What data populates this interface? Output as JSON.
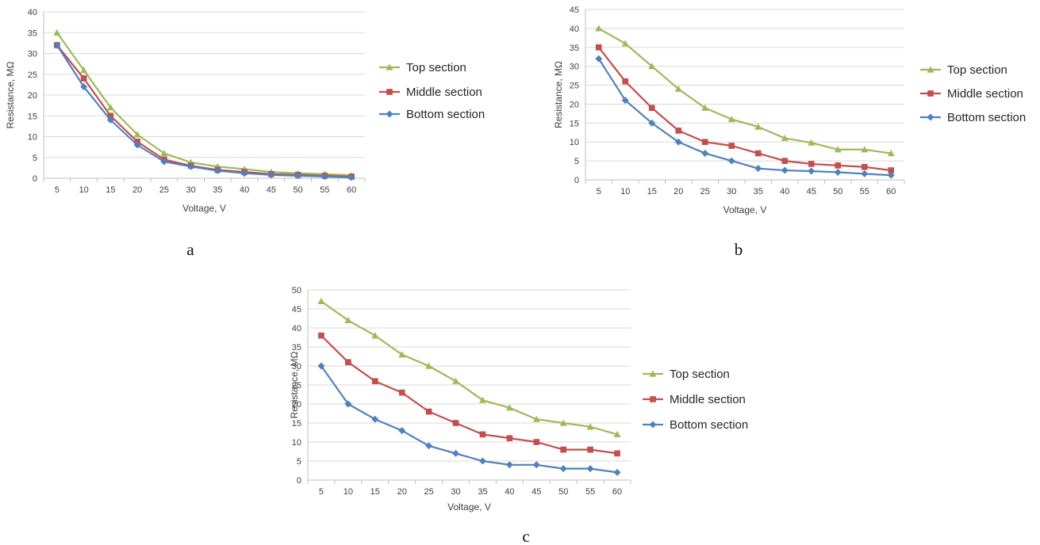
{
  "colors": {
    "top": "#9bbb59",
    "middle": "#c0504d",
    "bottom": "#4f81bd",
    "grid": "#d9d9d9",
    "axis": "#bfbfbf"
  },
  "chart_data": [
    {
      "type": "line",
      "panel_label": "a",
      "xlabel": "Voltage, V",
      "ylabel": "Resistance, MΩ",
      "x": [
        5,
        10,
        15,
        20,
        25,
        30,
        35,
        40,
        45,
        50,
        55,
        60
      ],
      "ylim": [
        0,
        40
      ],
      "ytick_step": 5,
      "grid": true,
      "legend_position": "right",
      "series": [
        {
          "name": "Top section",
          "marker": "triangle",
          "color": "#9bbb59",
          "values": [
            35,
            26,
            17,
            10.5,
            6,
            3.8,
            2.8,
            2.2,
            1.5,
            1.2,
            1.0,
            0.7
          ]
        },
        {
          "name": "Middle section",
          "marker": "square",
          "color": "#c0504d",
          "values": [
            32,
            24,
            15,
            8.8,
            4.5,
            3.0,
            2.0,
            1.5,
            1.0,
            0.8,
            0.6,
            0.4
          ]
        },
        {
          "name": "Bottom section",
          "marker": "diamond",
          "color": "#4f81bd",
          "values": [
            32,
            22,
            14,
            8,
            4,
            2.8,
            1.8,
            1.2,
            0.8,
            0.6,
            0.4,
            0.2
          ]
        }
      ]
    },
    {
      "type": "line",
      "panel_label": "b",
      "xlabel": "Voltage, V",
      "ylabel": "Resistance, MΩ",
      "x": [
        5,
        10,
        15,
        20,
        25,
        30,
        35,
        40,
        45,
        50,
        55,
        60
      ],
      "ylim": [
        0,
        45
      ],
      "ytick_step": 5,
      "grid": true,
      "legend_position": "right",
      "series": [
        {
          "name": "Top section",
          "marker": "triangle",
          "color": "#9bbb59",
          "values": [
            40,
            36,
            30,
            24,
            19,
            16,
            14,
            11,
            9.8,
            8,
            8,
            7
          ]
        },
        {
          "name": "Middle section",
          "marker": "square",
          "color": "#c0504d",
          "values": [
            35,
            26,
            19,
            13,
            10,
            9,
            7,
            5,
            4.2,
            3.8,
            3.4,
            2.5
          ]
        },
        {
          "name": "Bottom section",
          "marker": "diamond",
          "color": "#4f81bd",
          "values": [
            32,
            21,
            15,
            10,
            7,
            5,
            3,
            2.5,
            2.3,
            2,
            1.6,
            1.2
          ]
        }
      ]
    },
    {
      "type": "line",
      "panel_label": "c",
      "xlabel": "Voltage, V",
      "ylabel": "Resistance, MΩ",
      "x": [
        5,
        10,
        15,
        20,
        25,
        30,
        35,
        40,
        45,
        50,
        55,
        60
      ],
      "ylim": [
        0,
        50
      ],
      "ytick_step": 5,
      "grid": true,
      "legend_position": "right",
      "series": [
        {
          "name": "Top section",
          "marker": "triangle",
          "color": "#9bbb59",
          "values": [
            47,
            42,
            38,
            33,
            30,
            26,
            21,
            19,
            16,
            15,
            14,
            12
          ]
        },
        {
          "name": "Middle section",
          "marker": "square",
          "color": "#c0504d",
          "values": [
            38,
            31,
            26,
            23,
            18,
            15,
            12,
            11,
            10,
            8,
            8,
            7
          ]
        },
        {
          "name": "Bottom section",
          "marker": "diamond",
          "color": "#4f81bd",
          "values": [
            30,
            20,
            16,
            13,
            9,
            7,
            5,
            4,
            4,
            3,
            3,
            2
          ]
        }
      ]
    }
  ]
}
